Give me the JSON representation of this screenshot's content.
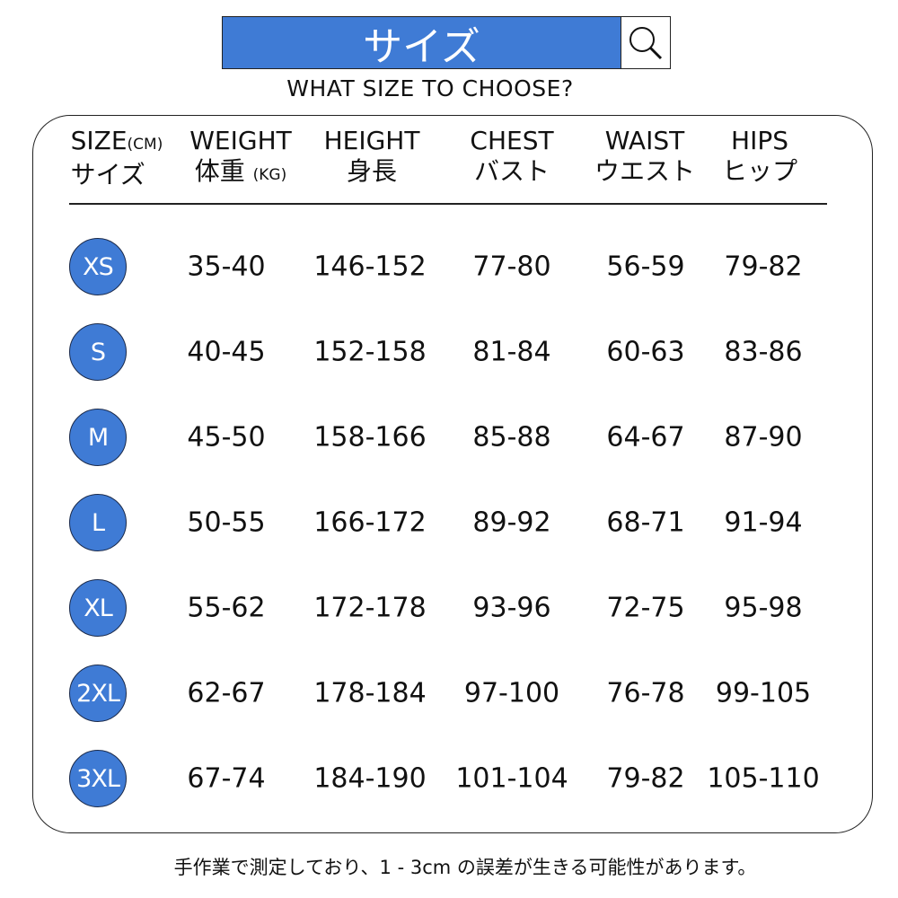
{
  "title": "サイズ",
  "search_icon": "magnifier-icon",
  "subtitle": "WHAT SIZE TO CHOOSE?",
  "headers": [
    {
      "en": "SIZE",
      "unit": "(CM)",
      "jp": "サイズ"
    },
    {
      "en": "WEIGHT",
      "jp": "体重",
      "unit": "(KG)"
    },
    {
      "en": "HEIGHT",
      "jp": "身長"
    },
    {
      "en": "CHEST",
      "jp": "バスト"
    },
    {
      "en": "WAIST",
      "jp": "ウエスト"
    },
    {
      "en": "HIPS",
      "jp": "ヒップ"
    }
  ],
  "rows": [
    {
      "size": "XS",
      "weight": "35-40",
      "height": "146-152",
      "chest": "77-80",
      "waist": "56-59",
      "hips": "79-82"
    },
    {
      "size": "S",
      "weight": "40-45",
      "height": "152-158",
      "chest": "81-84",
      "waist": "60-63",
      "hips": "83-86"
    },
    {
      "size": "M",
      "weight": "45-50",
      "height": "158-166",
      "chest": "85-88",
      "waist": "64-67",
      "hips": "87-90"
    },
    {
      "size": "L",
      "weight": "50-55",
      "height": "166-172",
      "chest": "89-92",
      "waist": "68-71",
      "hips": "91-94"
    },
    {
      "size": "XL",
      "weight": "55-62",
      "height": "172-178",
      "chest": "93-96",
      "waist": "72-75",
      "hips": "95-98"
    },
    {
      "size": "2XL",
      "weight": "62-67",
      "height": "178-184",
      "chest": "97-100",
      "waist": "76-78",
      "hips": "99-105"
    },
    {
      "size": "3XL",
      "weight": "67-74",
      "height": "184-190",
      "chest": "101-104",
      "waist": "79-82",
      "hips": "105-110"
    }
  ],
  "footnote": "手作業で測定しており、1 - 3cm の誤差が生きる可能性があります。",
  "colors": {
    "accent": "#3f7bd5",
    "text": "#111111"
  }
}
